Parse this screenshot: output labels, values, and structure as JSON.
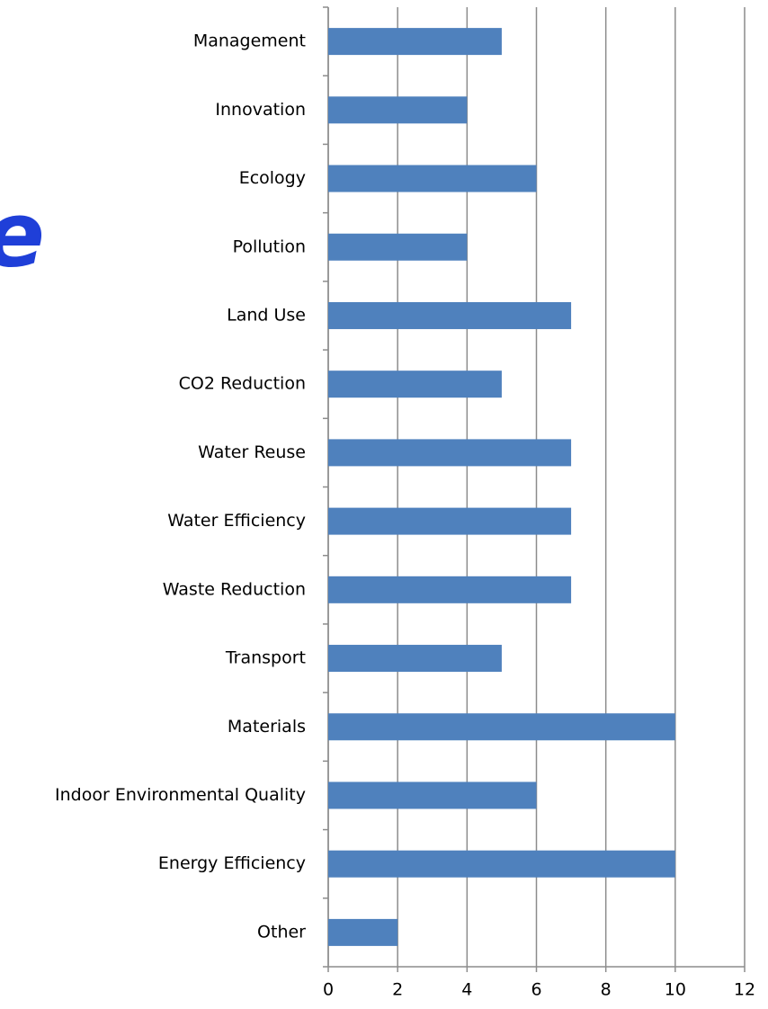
{
  "chart_data": {
    "type": "bar",
    "orientation": "horizontal",
    "annotation": "e",
    "categories": [
      "Management",
      "Innovation",
      "Ecology",
      "Pollution",
      "Land Use",
      "CO2 Reduction",
      "Water Reuse",
      "Water Efficiency",
      "Waste Reduction",
      "Transport",
      "Materials",
      "Indoor Environmental Quality",
      "Energy Efficiency",
      "Other"
    ],
    "values": [
      5,
      4,
      6,
      4,
      7,
      5,
      7,
      7,
      7,
      5,
      10,
      6,
      10,
      2
    ],
    "color": "#4f81bd",
    "xlim": [
      0,
      12
    ],
    "xticks": [
      0,
      2,
      4,
      6,
      8,
      10,
      12
    ],
    "grid": true
  }
}
